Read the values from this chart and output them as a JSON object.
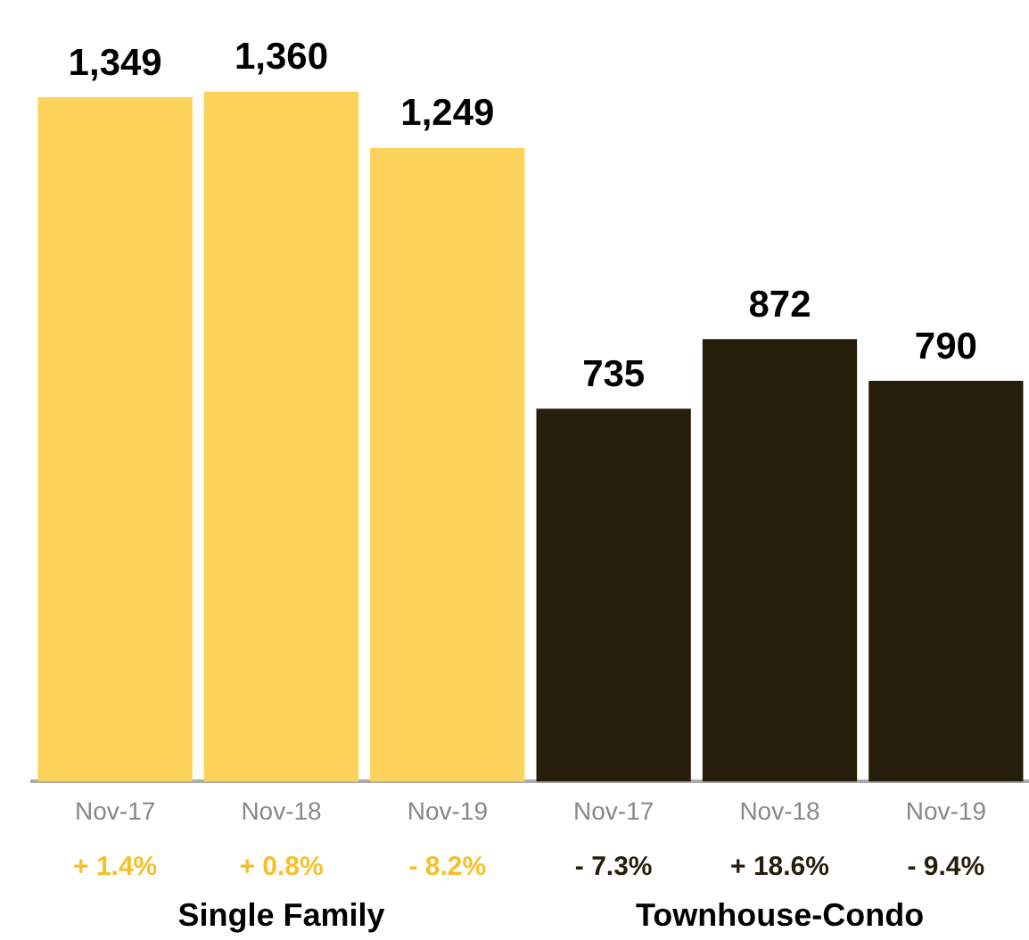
{
  "chart_data": {
    "type": "bar",
    "categories": [
      "Nov-17",
      "Nov-18",
      "Nov-19",
      "Nov-17",
      "Nov-18",
      "Nov-19"
    ],
    "values": [
      1349,
      1360,
      1249,
      735,
      872,
      790
    ],
    "colors": [
      "#fdd25a",
      "#fdd25a",
      "#fdd25a",
      "#261e0b",
      "#261e0b",
      "#261e0b"
    ],
    "data_labels": true,
    "value_labels": [
      "1,349",
      "1,360",
      "1,249",
      "735",
      "872",
      "790"
    ],
    "annotations": [
      "+ 1.4%",
      "+ 0.8%",
      "- 8.2%",
      "- 7.3%",
      "+ 18.6%",
      "- 9.4%",
      "Single Family",
      "Townhouse-Condo"
    ],
    "grid": false,
    "legend": false
  }
}
